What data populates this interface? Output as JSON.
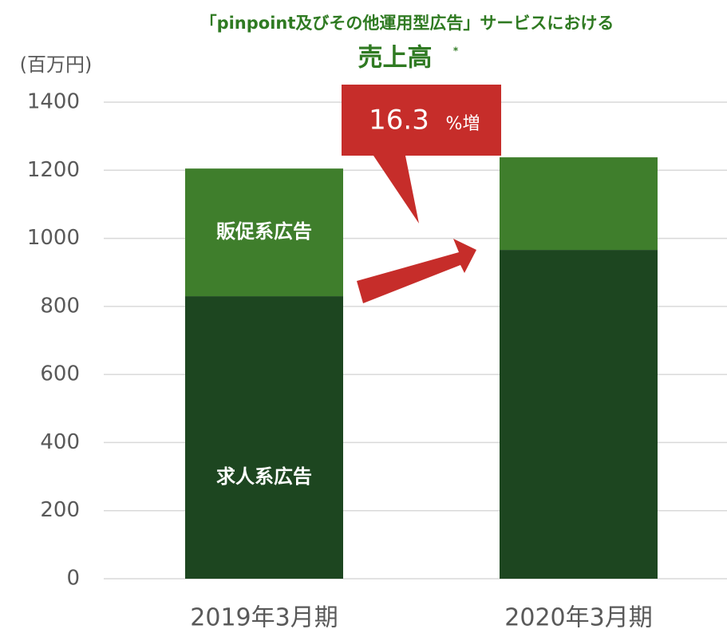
{
  "chart_data": {
    "type": "stacked_bar",
    "title": "「pinpoint及びその他運用型広告」サービスにおける",
    "subtitle": "売上高",
    "subtitle_mark": "*",
    "y_label": "(百万円)",
    "annotation_value": "16.3",
    "annotation_unit": "%増",
    "categories": [
      "2019年3月期",
      "2020年3月期"
    ],
    "series": [
      {
        "name": "求人系広告",
        "color": "#1d4620",
        "values": [
          830,
          966
        ]
      },
      {
        "name": "販促系広告",
        "color": "#3f7e2c",
        "values": [
          375,
          272
        ]
      }
    ],
    "ylim": [
      0,
      1400
    ],
    "yticks": [
      0,
      200,
      400,
      600,
      800,
      1000,
      1200,
      1400
    ],
    "grid": true
  }
}
